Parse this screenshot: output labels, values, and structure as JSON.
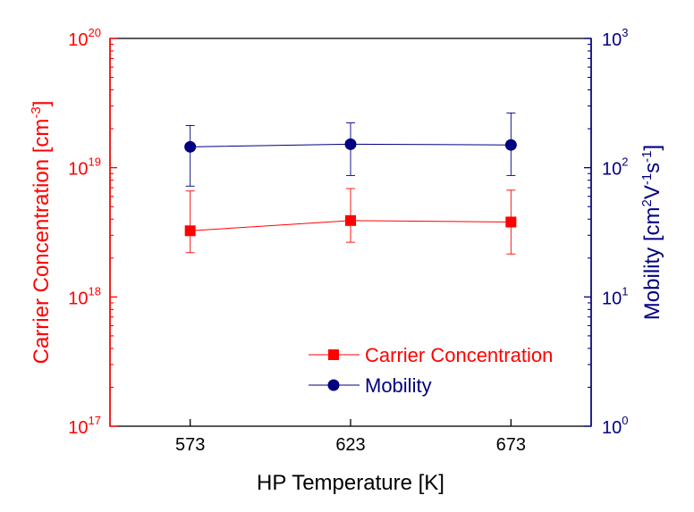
{
  "chart_data": {
    "type": "line",
    "x": [
      573,
      623,
      673
    ],
    "xlabel": "HP Temperature [K]",
    "xticks": [
      "573",
      "623",
      "673"
    ],
    "xlim": [
      548,
      698
    ],
    "y_left": {
      "label": "Carrier Concentration [cm",
      "label_sup": "-3",
      "label_close": "]",
      "scale": "log",
      "lim": [
        1e+17,
        1e+20
      ],
      "ticks": [
        {
          "value": 1e+17,
          "base": "10",
          "exp": "17"
        },
        {
          "value": 1e+18,
          "base": "10",
          "exp": "18"
        },
        {
          "value": 1e+19,
          "base": "10",
          "exp": "19"
        },
        {
          "value": 1e+20,
          "base": "10",
          "exp": "20"
        }
      ],
      "color": "#ff0000"
    },
    "y_right": {
      "label_parts": [
        {
          "t": "Mobility [cm",
          "sup": false
        },
        {
          "t": "2",
          "sup": true
        },
        {
          "t": "V",
          "sup": false
        },
        {
          "t": "-1",
          "sup": true
        },
        {
          "t": "s",
          "sup": false
        },
        {
          "t": "-1",
          "sup": true
        },
        {
          "t": "]",
          "sup": false
        }
      ],
      "scale": "log",
      "lim": [
        1,
        1000
      ],
      "ticks": [
        {
          "value": 1,
          "base": "10",
          "exp": "0"
        },
        {
          "value": 10,
          "base": "10",
          "exp": "1"
        },
        {
          "value": 100,
          "base": "10",
          "exp": "2"
        },
        {
          "value": 1000,
          "base": "10",
          "exp": "3"
        }
      ],
      "color": "#000080"
    },
    "series": [
      {
        "name": "Carrier Concentration",
        "axis": "left",
        "marker": "square",
        "color": "#ff0000",
        "values": [
          3.25e+18,
          3.9e+18,
          3.8e+18
        ],
        "err_low": [
          2.2e+18,
          2.65e+18,
          2.15e+18
        ],
        "err_high": [
          6.6e+18,
          6.9e+18,
          6.7e+18
        ]
      },
      {
        "name": "Mobility",
        "axis": "right",
        "marker": "circle",
        "color": "#000080",
        "values": [
          145,
          152,
          150
        ],
        "err_low": [
          72,
          87,
          87
        ],
        "err_high": [
          212,
          222,
          265
        ]
      }
    ],
    "legend": "bottom-right",
    "grid": false
  }
}
